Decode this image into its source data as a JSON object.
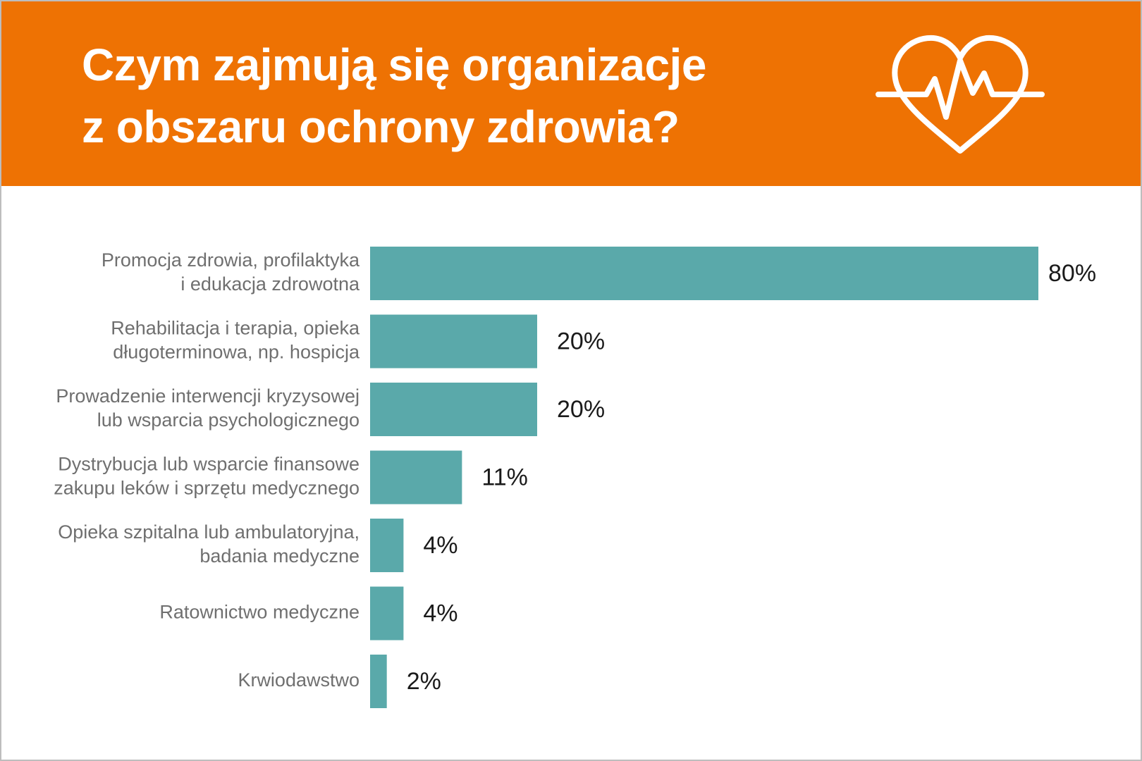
{
  "header": {
    "title_line1": "Czym zajmują się organizacje",
    "title_line2": "z obszaru ochrony zdrowia?",
    "icon": "heart-pulse-icon"
  },
  "colors": {
    "banner": "#ee7203",
    "bar": "#5aa9aa",
    "title_text": "#ffffff",
    "category_text": "#6f6f6f",
    "value_text": "#1a1a1a"
  },
  "chart_data": {
    "type": "bar",
    "orientation": "horizontal",
    "title": "Czym zajmują się organizacje z obszaru ochrony zdrowia?",
    "xlim": [
      0,
      80
    ],
    "grid": false,
    "legend": "none",
    "categories": [
      [
        "Promocja zdrowia, profilaktyka",
        "i edukacja zdrowotna"
      ],
      [
        "Rehabilitacja i terapia, opieka",
        "długoterminowa, np. hospicja"
      ],
      [
        "Prowadzenie interwencji kryzysowej",
        "lub wsparcia psychologicznego"
      ],
      [
        "Dystrybucja lub wsparcie finansowe",
        "zakupu leków i sprzętu medycznego"
      ],
      [
        "Opieka szpitalna lub ambulatoryjna,",
        "badania medyczne"
      ],
      [
        "Ratownictwo medyczne"
      ],
      [
        "Krwiodawstwo"
      ]
    ],
    "values": [
      80,
      20,
      20,
      11,
      4,
      4,
      2
    ],
    "value_labels": [
      "80%",
      "20%",
      "20%",
      "11%",
      "4%",
      "4%",
      "2%"
    ]
  }
}
